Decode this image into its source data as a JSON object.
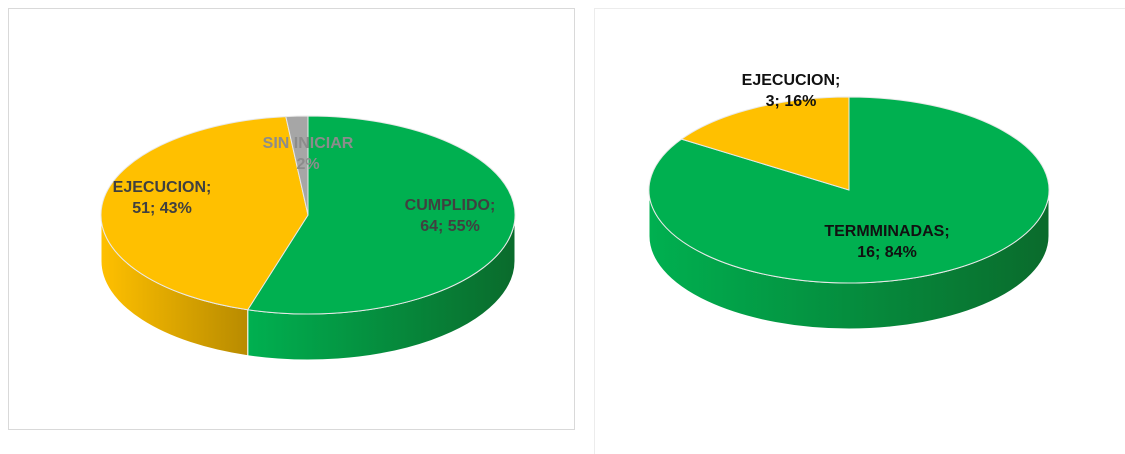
{
  "charts": [
    {
      "chart_data": {
        "type": "pie",
        "title": "",
        "slices": [
          {
            "label": "CUMPLIDO",
            "value": 64,
            "percent": "55%",
            "display": [
              "CUMPLIDO;",
              "64; 55%"
            ],
            "color": "#00b050",
            "side_color": "#0a6b2c"
          },
          {
            "label": "EJECUCION",
            "value": 51,
            "percent": "43%",
            "display": [
              "EJECUCION;",
              "51; 43%"
            ],
            "color": "#ffc000",
            "side_color": "#b88b00"
          },
          {
            "label": "SIN INICIAR",
            "value": 2,
            "percent": "2%",
            "display": [
              "SIN INICIAR",
              "2%"
            ],
            "color": "#a6a6a6",
            "side_color": "#7a7a7a"
          }
        ],
        "label_colors": [
          "#404040",
          "#404040",
          "#8c8c8c"
        ]
      }
    },
    {
      "chart_data": {
        "type": "pie",
        "title": "",
        "slices": [
          {
            "label": "TERMMINADAS",
            "value": 16,
            "percent": "84%",
            "display": [
              "TERMMINADAS;",
              "16; 84%"
            ],
            "color": "#00b050",
            "side_color": "#0a6b2c"
          },
          {
            "label": "EJECUCION",
            "value": 3,
            "percent": "16%",
            "display": [
              "EJECUCION;",
              "3; 16%"
            ],
            "color": "#ffc000",
            "side_color": "#b88b00"
          }
        ],
        "label_colors": [
          "#111111",
          "#111111"
        ]
      }
    }
  ]
}
